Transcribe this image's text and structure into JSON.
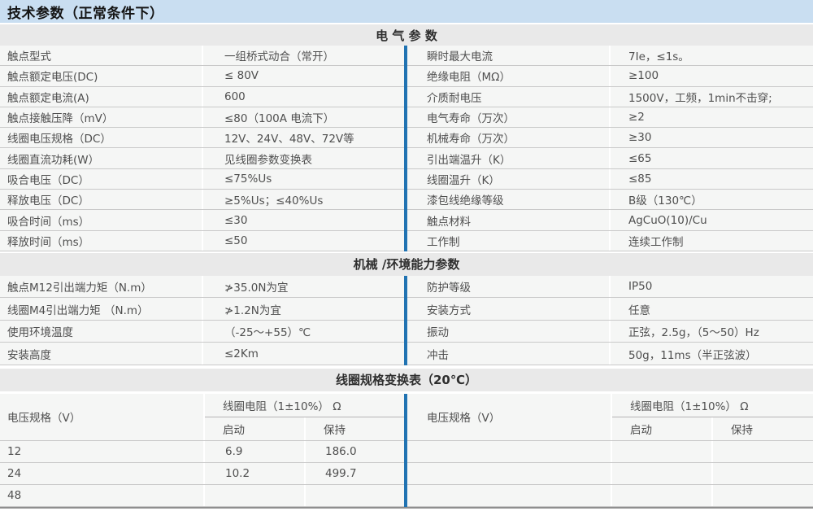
{
  "page": {
    "title": "技术参数（正常条件下）"
  },
  "colors": {
    "accent_blue": "#2173b2",
    "title_bar_bg": "#c9def1",
    "section_band_bg": "#e9e9e9",
    "row_bg": "#f5f6f5"
  },
  "sections": {
    "electrical": {
      "heading": "电 气 参 数",
      "left": [
        {
          "label": "触点型式",
          "value": "一组桥式动合（常开）"
        },
        {
          "label": "触点额定电压(DC)",
          "value": "≤ 80V"
        },
        {
          "label": "触点额定电流(A)",
          "value": "600"
        },
        {
          "label": "触点接触压降（mV）",
          "value": "≤80（100A 电流下）"
        },
        {
          "label": "线圈电压规格（DC）",
          "value": "12V、24V、48V、72V等"
        },
        {
          "label": "线圈直流功耗(W）",
          "value": "见线圈参数变换表"
        },
        {
          "label": "吸合电压（DC）",
          "value": "≤75%Us"
        },
        {
          "label": "释放电压（DC）",
          "value": "≥5%Us；≤40%Us"
        },
        {
          "label": "吸合时间（ms）",
          "value": "≤30"
        },
        {
          "label": "释放时间（ms）",
          "value": "≤50"
        }
      ],
      "right": [
        {
          "label": "瞬时最大电流",
          "value": "7Ie，≤1s。"
        },
        {
          "label": "绝缘电阻（MΩ）",
          "value": "≥100"
        },
        {
          "label": "介质耐电压",
          "value": "1500V，工频，1min不击穿;"
        },
        {
          "label": "电气寿命（万次）",
          "value": "≥2"
        },
        {
          "label": "机械寿命（万次）",
          "value": "≥30"
        },
        {
          "label": "引出端温升（K）",
          "value": "≤65"
        },
        {
          "label": "线圈温升（K）",
          "value": "≤85"
        },
        {
          "label": "漆包线绝缘等级",
          "value": "B级（130℃）"
        },
        {
          "label": "触点材料",
          "value": "AgCuO(10)/Cu"
        },
        {
          "label": "工作制",
          "value": "连续工作制"
        }
      ]
    },
    "mechanical": {
      "heading": "机械 /环境能力参数",
      "left": [
        {
          "label": "触点M12引出端力矩（N.m）",
          "value": "≯35.0N为宜"
        },
        {
          "label": "线圈M4引出端力矩 （N.m）",
          "value": "≯1.2N为宜"
        },
        {
          "label": "使用环境温度",
          "value": "（-25～+55）℃"
        },
        {
          "label": "安装高度",
          "value": "≤2Km"
        }
      ],
      "right": [
        {
          "label": "防护等级",
          "value": "IP50"
        },
        {
          "label": "安装方式",
          "value": "任意"
        },
        {
          "label": "振动",
          "value": "正弦，2.5g，（5～50）Hz"
        },
        {
          "label": "冲击",
          "value": "50g，11ms（半正弦波）"
        }
      ]
    },
    "coil": {
      "heading": "线圈规格变换表（20℃）",
      "voltage_header": "电压规格（V）",
      "resistance_header": "线圈电阻（1±10%） Ω",
      "start_header": "启动",
      "hold_header": "保持",
      "left_rows": [
        {
          "voltage": "12",
          "start": "6.9",
          "hold": "186.0"
        },
        {
          "voltage": "24",
          "start": "10.2",
          "hold": "499.7"
        },
        {
          "voltage": "48",
          "start": "",
          "hold": ""
        }
      ],
      "right_rows": [
        {
          "voltage": "",
          "start": "",
          "hold": ""
        },
        {
          "voltage": "",
          "start": "",
          "hold": ""
        },
        {
          "voltage": "",
          "start": "",
          "hold": ""
        }
      ]
    }
  }
}
